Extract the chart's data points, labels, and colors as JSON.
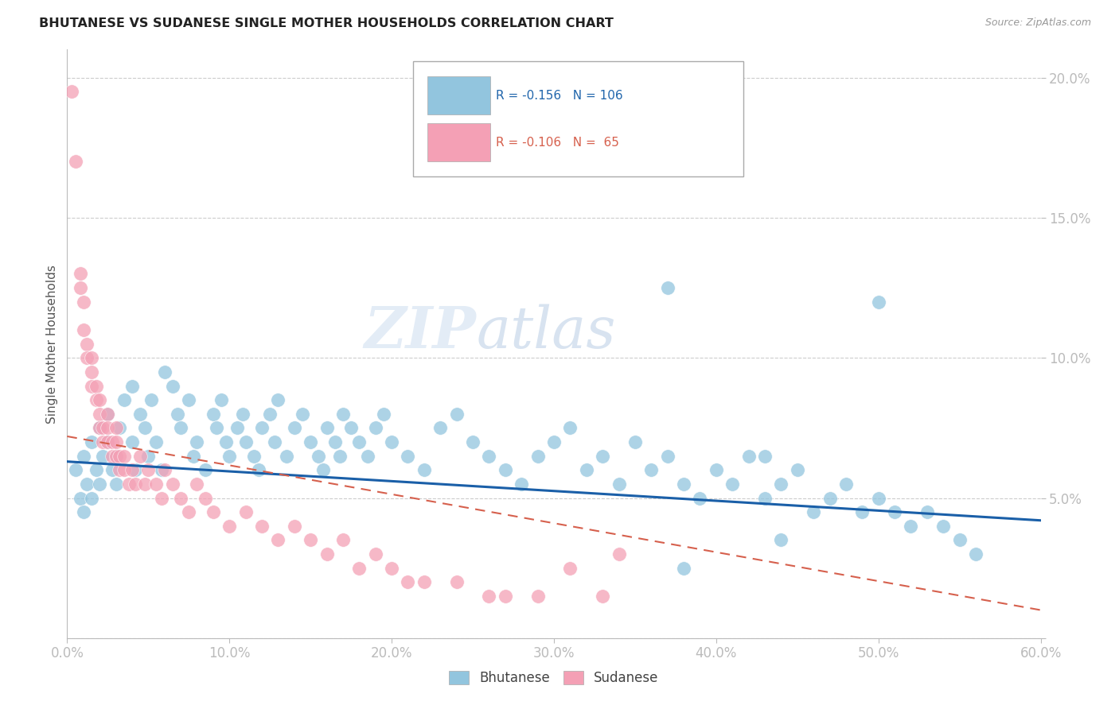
{
  "title": "BHUTANESE VS SUDANESE SINGLE MOTHER HOUSEHOLDS CORRELATION CHART",
  "source": "Source: ZipAtlas.com",
  "ylabel": "Single Mother Households",
  "xlim": [
    0.0,
    0.6
  ],
  "ylim": [
    0.0,
    0.21
  ],
  "xticks": [
    0.0,
    0.1,
    0.2,
    0.3,
    0.4,
    0.5,
    0.6
  ],
  "yticks": [
    0.0,
    0.05,
    0.1,
    0.15,
    0.2
  ],
  "ytick_labels": [
    "",
    "5.0%",
    "10.0%",
    "15.0%",
    "20.0%"
  ],
  "xtick_labels": [
    "0.0%",
    "10.0%",
    "20.0%",
    "30.0%",
    "40.0%",
    "50.0%",
    "60.0%"
  ],
  "legend_r_blue": "-0.156",
  "legend_n_blue": "106",
  "legend_r_pink": "-0.106",
  "legend_n_pink": "65",
  "blue_color": "#92c5de",
  "pink_color": "#f4a0b5",
  "trendline_blue_color": "#1a5fa8",
  "trendline_pink_color": "#d6604d",
  "axis_tick_color": "#4472c4",
  "watermark": "ZIPatlas",
  "blue_trend": [
    0.063,
    0.042
  ],
  "pink_trend": [
    0.072,
    0.01
  ],
  "blue_x": [
    0.005,
    0.008,
    0.01,
    0.01,
    0.012,
    0.015,
    0.015,
    0.018,
    0.02,
    0.02,
    0.022,
    0.025,
    0.025,
    0.028,
    0.03,
    0.03,
    0.032,
    0.035,
    0.04,
    0.04,
    0.042,
    0.045,
    0.048,
    0.05,
    0.052,
    0.055,
    0.058,
    0.06,
    0.065,
    0.068,
    0.07,
    0.075,
    0.078,
    0.08,
    0.085,
    0.09,
    0.092,
    0.095,
    0.098,
    0.1,
    0.105,
    0.108,
    0.11,
    0.115,
    0.118,
    0.12,
    0.125,
    0.128,
    0.13,
    0.135,
    0.14,
    0.145,
    0.15,
    0.155,
    0.158,
    0.16,
    0.165,
    0.168,
    0.17,
    0.175,
    0.18,
    0.185,
    0.19,
    0.195,
    0.2,
    0.21,
    0.22,
    0.23,
    0.24,
    0.25,
    0.26,
    0.27,
    0.28,
    0.29,
    0.3,
    0.31,
    0.32,
    0.33,
    0.34,
    0.35,
    0.36,
    0.37,
    0.38,
    0.39,
    0.4,
    0.41,
    0.42,
    0.43,
    0.44,
    0.45,
    0.46,
    0.47,
    0.48,
    0.49,
    0.5,
    0.51,
    0.52,
    0.53,
    0.54,
    0.55,
    0.56,
    0.37,
    0.43,
    0.5,
    0.44,
    0.38
  ],
  "blue_y": [
    0.06,
    0.05,
    0.065,
    0.045,
    0.055,
    0.05,
    0.07,
    0.06,
    0.055,
    0.075,
    0.065,
    0.07,
    0.08,
    0.06,
    0.065,
    0.055,
    0.075,
    0.085,
    0.09,
    0.07,
    0.06,
    0.08,
    0.075,
    0.065,
    0.085,
    0.07,
    0.06,
    0.095,
    0.09,
    0.08,
    0.075,
    0.085,
    0.065,
    0.07,
    0.06,
    0.08,
    0.075,
    0.085,
    0.07,
    0.065,
    0.075,
    0.08,
    0.07,
    0.065,
    0.06,
    0.075,
    0.08,
    0.07,
    0.085,
    0.065,
    0.075,
    0.08,
    0.07,
    0.065,
    0.06,
    0.075,
    0.07,
    0.065,
    0.08,
    0.075,
    0.07,
    0.065,
    0.075,
    0.08,
    0.07,
    0.065,
    0.06,
    0.075,
    0.08,
    0.07,
    0.065,
    0.06,
    0.055,
    0.065,
    0.07,
    0.075,
    0.06,
    0.065,
    0.055,
    0.07,
    0.06,
    0.065,
    0.055,
    0.05,
    0.06,
    0.055,
    0.065,
    0.05,
    0.055,
    0.06,
    0.045,
    0.05,
    0.055,
    0.045,
    0.05,
    0.045,
    0.04,
    0.045,
    0.04,
    0.035,
    0.03,
    0.125,
    0.065,
    0.12,
    0.035,
    0.025
  ],
  "pink_x": [
    0.003,
    0.005,
    0.008,
    0.008,
    0.01,
    0.01,
    0.012,
    0.012,
    0.015,
    0.015,
    0.015,
    0.018,
    0.018,
    0.02,
    0.02,
    0.02,
    0.022,
    0.022,
    0.025,
    0.025,
    0.025,
    0.028,
    0.028,
    0.03,
    0.03,
    0.03,
    0.032,
    0.032,
    0.035,
    0.035,
    0.038,
    0.04,
    0.042,
    0.045,
    0.048,
    0.05,
    0.055,
    0.058,
    0.06,
    0.065,
    0.07,
    0.075,
    0.08,
    0.085,
    0.09,
    0.1,
    0.11,
    0.12,
    0.13,
    0.14,
    0.15,
    0.16,
    0.17,
    0.18,
    0.19,
    0.2,
    0.21,
    0.22,
    0.24,
    0.26,
    0.27,
    0.29,
    0.31,
    0.33,
    0.34
  ],
  "pink_y": [
    0.195,
    0.17,
    0.13,
    0.125,
    0.12,
    0.11,
    0.105,
    0.1,
    0.1,
    0.095,
    0.09,
    0.09,
    0.085,
    0.085,
    0.08,
    0.075,
    0.075,
    0.07,
    0.08,
    0.075,
    0.07,
    0.07,
    0.065,
    0.075,
    0.07,
    0.065,
    0.065,
    0.06,
    0.065,
    0.06,
    0.055,
    0.06,
    0.055,
    0.065,
    0.055,
    0.06,
    0.055,
    0.05,
    0.06,
    0.055,
    0.05,
    0.045,
    0.055,
    0.05,
    0.045,
    0.04,
    0.045,
    0.04,
    0.035,
    0.04,
    0.035,
    0.03,
    0.035,
    0.025,
    0.03,
    0.025,
    0.02,
    0.02,
    0.02,
    0.015,
    0.015,
    0.015,
    0.025,
    0.015,
    0.03
  ]
}
